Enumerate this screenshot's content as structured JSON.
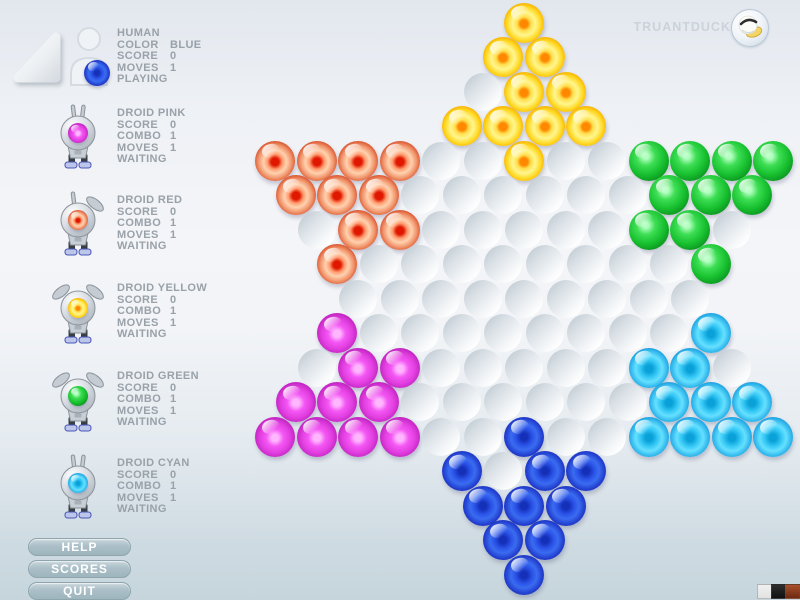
{
  "header": {
    "brand": "TRUANTDUCK",
    "logo_icon": "duck-logo-icon"
  },
  "players": [
    {
      "kind": "human",
      "name": "HUMAN",
      "marble": "blue",
      "antennae": "none",
      "lines": [
        [
          "COLOR",
          "BLUE"
        ],
        [
          "SCORE",
          "0"
        ],
        [
          "MOVES",
          "1"
        ]
      ],
      "status": "PLAYING"
    },
    {
      "kind": "droid",
      "name": "DROID PINK",
      "marble": "magenta",
      "antennae": "straight",
      "lines": [
        [
          "SCORE",
          "0"
        ],
        [
          "COMBO",
          "1"
        ],
        [
          "MOVES",
          "1"
        ]
      ],
      "status": "WAITING"
    },
    {
      "kind": "droid",
      "name": "DROID RED",
      "marble": "red",
      "antennae": "mixed",
      "lines": [
        [
          "SCORE",
          "0"
        ],
        [
          "COMBO",
          "1"
        ],
        [
          "MOVES",
          "1"
        ]
      ],
      "status": "WAITING"
    },
    {
      "kind": "droid",
      "name": "DROID YELLOW",
      "marble": "yellow",
      "antennae": "wings",
      "lines": [
        [
          "SCORE",
          "0"
        ],
        [
          "COMBO",
          "1"
        ],
        [
          "MOVES",
          "1"
        ]
      ],
      "status": "WAITING"
    },
    {
      "kind": "droid",
      "name": "DROID GREEN",
      "marble": "green",
      "antennae": "wings",
      "lines": [
        [
          "SCORE",
          "0"
        ],
        [
          "COMBO",
          "1"
        ],
        [
          "MOVES",
          "1"
        ]
      ],
      "status": "WAITING"
    },
    {
      "kind": "droid",
      "name": "DROID CYAN",
      "marble": "cyan",
      "antennae": "straight",
      "lines": [
        [
          "SCORE",
          "0"
        ],
        [
          "COMBO",
          "1"
        ],
        [
          "MOVES",
          "1"
        ]
      ],
      "status": "WAITING"
    }
  ],
  "buttons": [
    {
      "label": "HELP"
    },
    {
      "label": "SCORES"
    },
    {
      "label": "QUIT"
    }
  ],
  "board": {
    "row_counts": [
      1,
      2,
      3,
      4,
      13,
      12,
      11,
      10,
      9,
      10,
      11,
      12,
      13,
      4,
      3,
      2,
      1
    ],
    "marbles": {
      "yellow": [
        [
          1,
          1
        ],
        [
          2,
          1
        ],
        [
          2,
          2
        ],
        [
          3,
          2
        ],
        [
          3,
          3
        ],
        [
          4,
          1
        ],
        [
          4,
          2
        ],
        [
          4,
          3
        ],
        [
          4,
          4
        ],
        [
          5,
          7
        ]
      ],
      "red": [
        [
          5,
          1
        ],
        [
          5,
          2
        ],
        [
          5,
          3
        ],
        [
          5,
          4
        ],
        [
          6,
          1
        ],
        [
          6,
          2
        ],
        [
          6,
          3
        ],
        [
          7,
          2
        ],
        [
          7,
          3
        ],
        [
          8,
          1
        ]
      ],
      "green": [
        [
          5,
          10
        ],
        [
          5,
          11
        ],
        [
          5,
          12
        ],
        [
          5,
          13
        ],
        [
          6,
          10
        ],
        [
          6,
          11
        ],
        [
          6,
          12
        ],
        [
          7,
          9
        ],
        [
          7,
          10
        ],
        [
          8,
          10
        ]
      ],
      "magenta": [
        [
          10,
          1
        ],
        [
          11,
          2
        ],
        [
          11,
          3
        ],
        [
          12,
          1
        ],
        [
          12,
          2
        ],
        [
          12,
          3
        ],
        [
          13,
          1
        ],
        [
          13,
          2
        ],
        [
          13,
          3
        ],
        [
          13,
          4
        ]
      ],
      "cyan": [
        [
          10,
          10
        ],
        [
          11,
          9
        ],
        [
          11,
          10
        ],
        [
          12,
          10
        ],
        [
          12,
          11
        ],
        [
          12,
          12
        ],
        [
          13,
          10
        ],
        [
          13,
          11
        ],
        [
          13,
          12
        ],
        [
          13,
          13
        ]
      ],
      "blue": [
        [
          13,
          7
        ],
        [
          14,
          1
        ],
        [
          14,
          3
        ],
        [
          14,
          4
        ],
        [
          15,
          1
        ],
        [
          15,
          2
        ],
        [
          15,
          3
        ],
        [
          16,
          1
        ],
        [
          16,
          2
        ],
        [
          17,
          1
        ]
      ]
    }
  },
  "colors": {
    "yellow": "#ffcf0a",
    "red": "#e03318",
    "green": "#1ec23a",
    "magenta": "#da46da",
    "cyan": "#30c2f5",
    "blue": "#2a3fd4",
    "button": "#a6bbc4",
    "sidebar_text": "#99a1a9",
    "brand_text": "#ccd2db"
  },
  "corner_swatches": [
    {
      "name": "white-swatch",
      "color": "#f0f0f0"
    },
    {
      "name": "black-swatch",
      "color": "#2e2e2e"
    },
    {
      "name": "rust-swatch",
      "color": "#a8502c"
    }
  ]
}
